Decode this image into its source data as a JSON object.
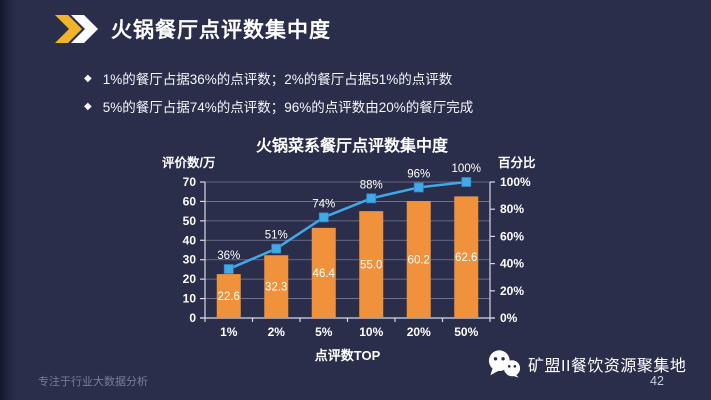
{
  "slide": {
    "title": "火锅餐厅点评数集中度",
    "bullets": [
      "1%的餐厅占据36%的点评数；2%的餐厅占据51%的点评数",
      "5%的餐厅占据74%的点评数；96%的点评数由20%的餐厅完成"
    ],
    "footer_left": "专注于行业大数据分析",
    "footer_brand": "矿盟II餐饮资源聚集地",
    "page_number": "42"
  },
  "icons": {
    "header": "double-chevron-right-icon",
    "footer": "wechat-icon"
  },
  "colors": {
    "background": "#2B2E4B",
    "bar": "#F0923C",
    "line": "#41A9E8",
    "marker": "#41A9E8",
    "grid": "#B9BDCE",
    "axis": "#D5D8E4",
    "text": "#FFFFFF",
    "accent_gold": "#F0B428"
  },
  "chart_data": {
    "type": "bar",
    "title": "火锅菜系餐厅点评数集中度",
    "categories": [
      "1%",
      "2%",
      "5%",
      "10%",
      "20%",
      "50%"
    ],
    "series": [
      {
        "name": "评价数/万",
        "type": "bar",
        "values": [
          22.6,
          32.3,
          46.4,
          55.0,
          60.2,
          62.6
        ],
        "labels": [
          "22.6",
          "32.3",
          "46.4",
          "55.0",
          "60.2",
          "62.6"
        ],
        "axis": "left"
      },
      {
        "name": "百分比",
        "type": "line",
        "values": [
          36,
          51,
          74,
          88,
          96,
          100
        ],
        "labels": [
          "36%",
          "51%",
          "74%",
          "88%",
          "96%",
          "100%"
        ],
        "axis": "right"
      }
    ],
    "left_axis": {
      "label": "评价数/万",
      "min": 0,
      "max": 70,
      "step": 10,
      "ticks": [
        "0",
        "10",
        "20",
        "30",
        "40",
        "50",
        "60",
        "70"
      ]
    },
    "right_axis": {
      "label": "百分比",
      "min": 0,
      "max": 100,
      "step": 20,
      "ticks": [
        "0%",
        "20%",
        "40%",
        "60%",
        "80%",
        "100%"
      ]
    },
    "xlabel": "点评数TOP",
    "grid": true,
    "legend": "none"
  }
}
